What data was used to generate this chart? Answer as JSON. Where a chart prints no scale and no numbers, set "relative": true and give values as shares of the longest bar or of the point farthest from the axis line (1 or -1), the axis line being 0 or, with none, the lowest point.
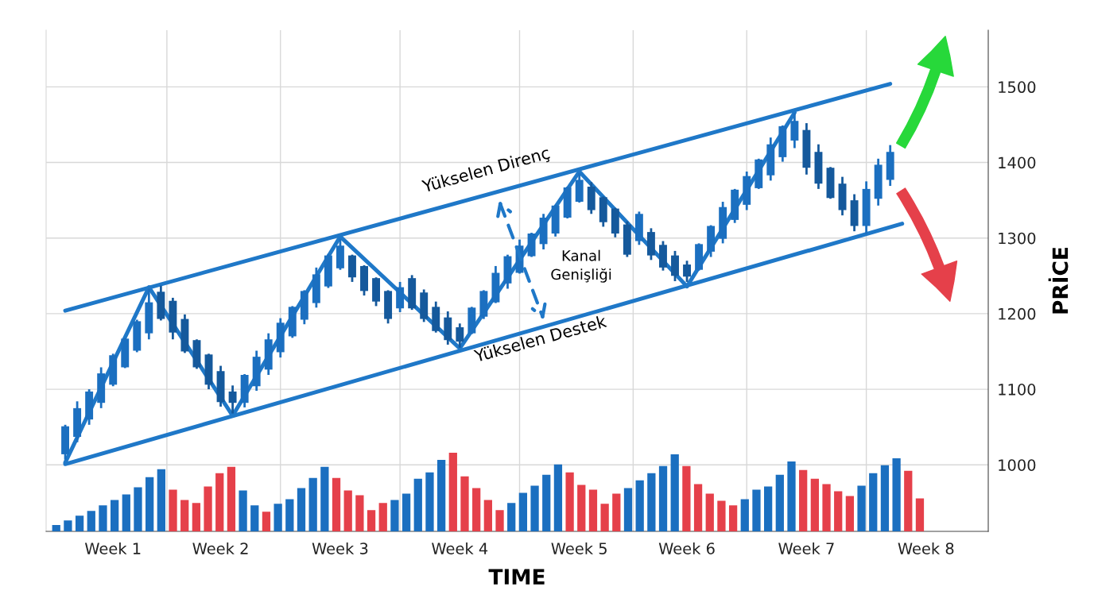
{
  "chart_data": [
    {
      "type": "candlestick",
      "xlabel": "TIME",
      "ylabel": "PRİCE",
      "categories": [
        null,
        null,
        null,
        null,
        "Week 1",
        null,
        null,
        null,
        null,
        null,
        null,
        null,
        null,
        "Week 2",
        null,
        null,
        null,
        null,
        null,
        null,
        null,
        null,
        null,
        "Week 3",
        null,
        null,
        null,
        null,
        null,
        null,
        null,
        null,
        null,
        "Week 4",
        null,
        null,
        null,
        null,
        null,
        null,
        null,
        null,
        null,
        "Week 5",
        null,
        null,
        null,
        null,
        null,
        null,
        null,
        null,
        "Week 6",
        null,
        null,
        null,
        null,
        null,
        null,
        null,
        null,
        null,
        "Week 7",
        null,
        null,
        null,
        null,
        null,
        null,
        null,
        null,
        null,
        "Week 8",
        null,
        null,
        null,
        null,
        null
      ],
      "colors": [
        "#1b6fc0",
        "#1b6fc0",
        "#1b6fc0",
        "#1b6fc0",
        "#1b6fc0",
        "#1b6fc0",
        "#1b6fc0",
        "#1b6fc0",
        "#15599c",
        "#15599c",
        "#15599c",
        "#15599c",
        "#15599c",
        "#15599c",
        "#15599c",
        "#1b6fc0",
        "#1b6fc0",
        "#1b6fc0",
        "#1b6fc0",
        "#1b6fc0",
        "#1b6fc0",
        "#1b6fc0",
        "#1b6fc0",
        "#1b6fc0",
        "#15599c",
        "#15599c",
        "#15599c",
        "#15599c",
        "#1b6fc0",
        "#15599c",
        "#15599c",
        "#15599c",
        "#15599c",
        "#15599c",
        "#1b6fc0",
        "#1b6fc0",
        "#1b6fc0",
        "#1b6fc0",
        "#1b6fc0",
        "#1b6fc0",
        "#1b6fc0",
        "#1b6fc0",
        "#1b6fc0",
        "#1b6fc0",
        "#15599c",
        "#15599c",
        "#15599c",
        "#15599c",
        "#1b6fc0",
        "#15599c",
        "#15599c",
        "#15599c",
        "#15599c",
        "#1b6fc0",
        "#1b6fc0",
        "#1b6fc0",
        "#1b6fc0",
        "#1b6fc0",
        "#1b6fc0",
        "#1b6fc0",
        "#1b6fc0",
        "#1b6fc0",
        "#15599c",
        "#15599c",
        "#15599c",
        "#15599c",
        "#15599c",
        "#1b6fc0",
        "#1b6fc0",
        "#1b6fc0",
        null,
        null,
        null,
        null,
        null,
        null,
        null,
        null
      ],
      "ohlc": [
        [
          1014,
          1053,
          1007,
          1051
        ],
        [
          1037,
          1084,
          1030,
          1075
        ],
        [
          1060,
          1100,
          1053,
          1097
        ],
        [
          1082,
          1129,
          1075,
          1121
        ],
        [
          1106,
          1147,
          1104,
          1145
        ],
        [
          1129,
          1168,
          1128,
          1167
        ],
        [
          1151,
          1192,
          1149,
          1190
        ],
        [
          1174,
          1233,
          1166,
          1215
        ],
        [
          1229,
          1237,
          1191,
          1193
        ],
        [
          1217,
          1221,
          1166,
          1175
        ],
        [
          1193,
          1199,
          1148,
          1150
        ],
        [
          1165,
          1166,
          1127,
          1129
        ],
        [
          1146,
          1147,
          1100,
          1106
        ],
        [
          1124,
          1131,
          1077,
          1083
        ],
        [
          1097,
          1105,
          1068,
          1082
        ],
        [
          1082,
          1120,
          1076,
          1119
        ],
        [
          1104,
          1151,
          1098,
          1143
        ],
        [
          1126,
          1174,
          1119,
          1166
        ],
        [
          1149,
          1194,
          1142,
          1188
        ],
        [
          1170,
          1210,
          1168,
          1209
        ],
        [
          1192,
          1231,
          1186,
          1230
        ],
        [
          1214,
          1261,
          1208,
          1252
        ],
        [
          1236,
          1279,
          1234,
          1277
        ],
        [
          1260,
          1299,
          1258,
          1290
        ],
        [
          1277,
          1278,
          1242,
          1248
        ],
        [
          1263,
          1264,
          1224,
          1230
        ],
        [
          1247,
          1248,
          1210,
          1216
        ],
        [
          1230,
          1231,
          1187,
          1193
        ],
        [
          1207,
          1242,
          1202,
          1235
        ],
        [
          1247,
          1251,
          1205,
          1207
        ],
        [
          1228,
          1232,
          1189,
          1193
        ],
        [
          1209,
          1216,
          1175,
          1177
        ],
        [
          1195,
          1203,
          1159,
          1165
        ],
        [
          1182,
          1187,
          1155,
          1163
        ],
        [
          1174,
          1209,
          1173,
          1208
        ],
        [
          1196,
          1231,
          1193,
          1230
        ],
        [
          1215,
          1263,
          1214,
          1254
        ],
        [
          1240,
          1278,
          1233,
          1276
        ],
        [
          1254,
          1298,
          1253,
          1290
        ],
        [
          1276,
          1307,
          1275,
          1306
        ],
        [
          1292,
          1332,
          1285,
          1327
        ],
        [
          1306,
          1344,
          1302,
          1343
        ],
        [
          1327,
          1368,
          1326,
          1367
        ],
        [
          1348,
          1386,
          1347,
          1377
        ],
        [
          1368,
          1374,
          1332,
          1337
        ],
        [
          1354,
          1355,
          1315,
          1321
        ],
        [
          1339,
          1340,
          1301,
          1306
        ],
        [
          1318,
          1322,
          1275,
          1278
        ],
        [
          1296,
          1335,
          1291,
          1332
        ],
        [
          1308,
          1313,
          1271,
          1277
        ],
        [
          1291,
          1296,
          1257,
          1261
        ],
        [
          1277,
          1283,
          1243,
          1250
        ],
        [
          1265,
          1270,
          1242,
          1249
        ],
        [
          1258,
          1293,
          1257,
          1292
        ],
        [
          1282,
          1317,
          1275,
          1316
        ],
        [
          1299,
          1348,
          1293,
          1341
        ],
        [
          1324,
          1365,
          1320,
          1364
        ],
        [
          1344,
          1388,
          1337,
          1382
        ],
        [
          1366,
          1405,
          1365,
          1404
        ],
        [
          1383,
          1433,
          1376,
          1424
        ],
        [
          1407,
          1449,
          1401,
          1448
        ],
        [
          1429,
          1465,
          1419,
          1455
        ],
        [
          1443,
          1452,
          1384,
          1393
        ],
        [
          1414,
          1424,
          1365,
          1372
        ],
        [
          1393,
          1394,
          1352,
          1353
        ],
        [
          1372,
          1381,
          1330,
          1337
        ],
        [
          1350,
          1358,
          1309,
          1316
        ],
        [
          1316,
          1375,
          1305,
          1365
        ],
        [
          1352,
          1405,
          1343,
          1397
        ],
        [
          1377,
          1423,
          1369,
          1414
        ],
        null,
        null,
        null,
        null,
        null,
        null,
        null,
        null
      ],
      "series": [
        {
          "type": "line",
          "color": "#1f78c8",
          "values": [
            1204,
            null,
            null,
            null,
            null,
            null,
            null,
            null,
            null,
            null,
            null,
            null,
            null,
            null,
            null,
            null,
            null,
            null,
            null,
            null,
            null,
            null,
            null,
            null,
            null,
            null,
            null,
            null,
            null,
            null,
            null,
            null,
            null,
            null,
            null,
            null,
            null,
            null,
            null,
            null,
            null,
            null,
            null,
            null,
            null,
            null,
            null,
            null,
            null,
            null,
            null,
            null,
            null,
            null,
            null,
            null,
            null,
            null,
            null,
            null,
            null,
            null,
            null,
            null,
            null,
            null,
            null,
            null,
            null,
            1504,
            null,
            null,
            null,
            null,
            null,
            null,
            null,
            null
          ]
        },
        {
          "type": "line",
          "color": "#1f78c8",
          "values": [
            1001,
            null,
            null,
            null,
            null,
            null,
            null,
            null,
            null,
            null,
            null,
            null,
            null,
            null,
            null,
            null,
            null,
            null,
            null,
            null,
            null,
            null,
            null,
            null,
            null,
            null,
            null,
            null,
            null,
            null,
            null,
            null,
            null,
            null,
            null,
            null,
            null,
            null,
            null,
            null,
            null,
            null,
            null,
            null,
            null,
            null,
            null,
            null,
            null,
            null,
            null,
            null,
            null,
            null,
            null,
            null,
            null,
            null,
            null,
            null,
            null,
            null,
            null,
            null,
            null,
            null,
            null,
            null,
            null,
            null,
            1319,
            null,
            null,
            null,
            null,
            null,
            null,
            null
          ]
        },
        {
          "type": "line",
          "color": "#1f78c8",
          "values": [
            1003,
            null,
            null,
            null,
            null,
            null,
            null,
            1235,
            null,
            null,
            null,
            null,
            null,
            null,
            1065,
            null,
            null,
            null,
            null,
            null,
            null,
            null,
            null,
            1302,
            null,
            null,
            null,
            null,
            null,
            null,
            null,
            null,
            null,
            1154,
            null,
            null,
            null,
            null,
            null,
            null,
            null,
            null,
            null,
            1388,
            null,
            null,
            null,
            null,
            null,
            null,
            null,
            null,
            1236,
            null,
            null,
            null,
            null,
            null,
            null,
            null,
            null,
            1466,
            null,
            null,
            null,
            null,
            null,
            null,
            null,
            null,
            null,
            null,
            null,
            null,
            null,
            null,
            null,
            null
          ]
        }
      ],
      "ylim": [
        912,
        1575
      ],
      "yticks": [
        1000,
        1100,
        1200,
        1300,
        1400,
        1500
      ],
      "grid": true,
      "annotations": [
        "Yükselen Direnç",
        "Yükselen Destek",
        "Kanal\nGenişliği"
      ]
    },
    {
      "type": "bar",
      "relative": true,
      "categories": [
        null,
        null,
        null,
        null,
        null,
        null,
        null,
        null,
        null,
        null,
        null,
        null,
        null,
        null,
        null,
        null,
        null,
        null,
        null,
        null,
        null,
        null,
        null,
        null,
        null,
        null,
        null,
        null,
        null,
        null,
        null,
        null,
        null,
        null,
        null,
        null,
        null,
        null,
        null,
        null,
        null,
        null,
        null,
        null,
        null,
        null,
        null,
        null,
        null,
        null,
        null,
        null,
        null,
        null,
        null,
        null,
        null,
        null,
        null,
        null,
        null,
        null,
        null,
        null,
        null,
        null,
        null,
        null,
        null,
        null,
        null,
        null,
        null,
        null,
        null
      ],
      "values": [
        0.08,
        0.14,
        0.2,
        0.26,
        0.33,
        0.4,
        0.47,
        0.56,
        0.69,
        0.79,
        0.53,
        0.4,
        0.36,
        0.57,
        0.74,
        0.82,
        0.52,
        0.33,
        0.25,
        0.35,
        0.41,
        0.55,
        0.68,
        0.82,
        0.68,
        0.52,
        0.46,
        0.27,
        0.36,
        0.4,
        0.48,
        0.67,
        0.75,
        0.91,
        1,
        0.7,
        0.55,
        0.4,
        0.27,
        0.36,
        0.49,
        0.58,
        0.72,
        0.85,
        0.75,
        0.59,
        0.53,
        0.35,
        0.48,
        0.55,
        0.65,
        0.74,
        0.83,
        0.98,
        0.83,
        0.6,
        0.48,
        0.39,
        0.33,
        0.41,
        0.53,
        0.57,
        0.72,
        0.89,
        0.78,
        0.67,
        0.6,
        0.51,
        0.45,
        0.58,
        0.74,
        0.84,
        0.93,
        0.77,
        0.42
      ],
      "colors": [
        "#1b6fc0",
        "#1b6fc0",
        "#1b6fc0",
        "#1b6fc0",
        "#1b6fc0",
        "#1b6fc0",
        "#1b6fc0",
        "#1b6fc0",
        "#1b6fc0",
        "#1b6fc0",
        "#e5404a",
        "#e5404a",
        "#e5404a",
        "#e5404a",
        "#e5404a",
        "#e5404a",
        "#1b6fc0",
        "#1b6fc0",
        "#e5404a",
        "#1b6fc0",
        "#1b6fc0",
        "#1b6fc0",
        "#1b6fc0",
        "#1b6fc0",
        "#e5404a",
        "#e5404a",
        "#e5404a",
        "#e5404a",
        "#e5404a",
        "#1b6fc0",
        "#1b6fc0",
        "#1b6fc0",
        "#1b6fc0",
        "#1b6fc0",
        "#e5404a",
        "#e5404a",
        "#e5404a",
        "#e5404a",
        "#e5404a",
        "#1b6fc0",
        "#1b6fc0",
        "#1b6fc0",
        "#1b6fc0",
        "#1b6fc0",
        "#e5404a",
        "#e5404a",
        "#e5404a",
        "#e5404a",
        "#e5404a",
        "#1b6fc0",
        "#1b6fc0",
        "#1b6fc0",
        "#1b6fc0",
        "#1b6fc0",
        "#e5404a",
        "#e5404a",
        "#e5404a",
        "#e5404a",
        "#e5404a",
        "#1b6fc0",
        "#1b6fc0",
        "#1b6fc0",
        "#1b6fc0",
        "#1b6fc0",
        "#e5404a",
        "#e5404a",
        "#e5404a",
        "#e5404a",
        "#e5404a",
        "#1b6fc0",
        "#1b6fc0",
        "#1b6fc0",
        "#1b6fc0",
        "#e5404a",
        "#e5404a"
      ]
    }
  ]
}
